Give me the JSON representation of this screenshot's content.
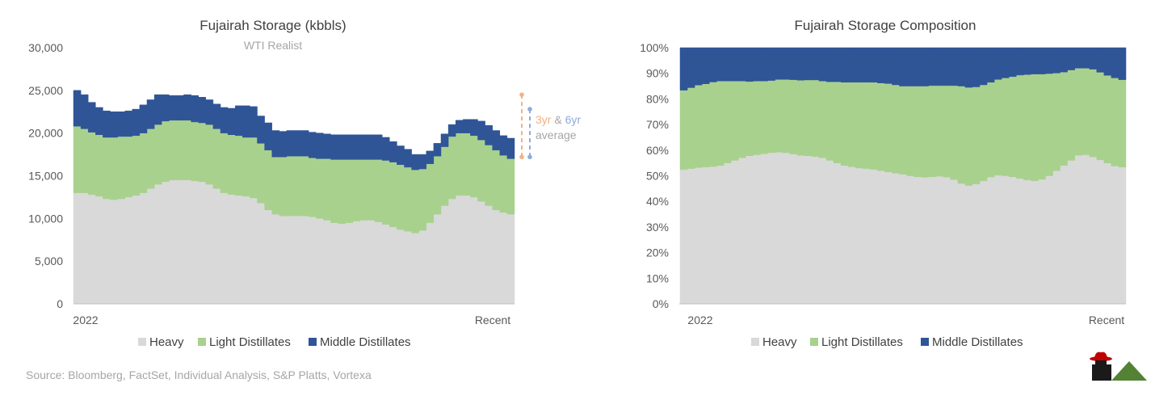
{
  "colors": {
    "heavy": "#d9d9d9",
    "light": "#a9d18e",
    "middle": "#2f5597",
    "axis": "#bfbfbf",
    "avg3": "#f4b183",
    "avg6": "#8faadc",
    "note": "#a6a6a6"
  },
  "source": "Source: Bloomberg, FactSet, Individual Analysis, S&P Platts, Vortexa",
  "logo": {
    "icon": "cowboy-hat-logo-and-mountain-icon"
  },
  "chart_data": [
    {
      "type": "area",
      "stacked": true,
      "title": "Fujairah Storage (kbbls)",
      "subtitle": "WTI Realist",
      "x_start_label": "2022",
      "x_end_label": "Recent",
      "ylim": [
        0,
        30000
      ],
      "yticks": [
        0,
        5000,
        10000,
        15000,
        20000,
        25000,
        30000
      ],
      "ytick_labels": [
        "0",
        "5,000",
        "10,000",
        "15,000",
        "20,000",
        "25,000",
        "30,000"
      ],
      "legend": [
        "Heavy",
        "Light Distillates",
        "Middle Distillates"
      ],
      "annotation": {
        "part1": "3yr",
        "part2": " & ",
        "part3": "6yr",
        "line2": "average"
      },
      "avg_3yr": {
        "high": 24500,
        "low": 17200
      },
      "avg_6yr": {
        "high": 22800,
        "low": 17200
      },
      "series": [
        {
          "name": "Heavy",
          "values": [
            13000,
            13000,
            12800,
            12600,
            12300,
            12200,
            12300,
            12500,
            12700,
            13000,
            13500,
            14000,
            14300,
            14500,
            14500,
            14500,
            14400,
            14300,
            14000,
            13500,
            13000,
            12800,
            12700,
            12600,
            12400,
            11800,
            11000,
            10500,
            10300,
            10300,
            10300,
            10300,
            10200,
            10000,
            9800,
            9500,
            9400,
            9500,
            9700,
            9800,
            9800,
            9600,
            9300,
            9000,
            8700,
            8500,
            8300,
            8600,
            9500,
            10500,
            11500,
            12300,
            12700,
            12700,
            12500,
            12000,
            11500,
            11000,
            10700,
            10500
          ]
        },
        {
          "name": "Light Distillates",
          "values": [
            7800,
            7500,
            7300,
            7200,
            7200,
            7300,
            7300,
            7100,
            7000,
            7000,
            7000,
            7000,
            7100,
            7000,
            7000,
            7000,
            6900,
            6900,
            7000,
            7000,
            7000,
            7000,
            7000,
            6900,
            7100,
            7000,
            7000,
            6700,
            6900,
            7000,
            7000,
            7000,
            6900,
            7000,
            7200,
            7400,
            7500,
            7400,
            7200,
            7100,
            7100,
            7300,
            7500,
            7600,
            7600,
            7500,
            7400,
            7200,
            6900,
            6800,
            6900,
            7300,
            7300,
            7300,
            7200,
            7200,
            7100,
            7000,
            6700,
            6500
          ]
        },
        {
          "name": "Middle Distillates",
          "values": [
            4200,
            4000,
            3500,
            3200,
            3100,
            3000,
            2900,
            3000,
            3100,
            3300,
            3400,
            3500,
            3100,
            2900,
            2900,
            3000,
            3100,
            3000,
            2900,
            2900,
            3000,
            3100,
            3500,
            3700,
            3600,
            3200,
            3200,
            3100,
            3000,
            3000,
            3000,
            3000,
            3000,
            3000,
            2900,
            2900,
            2900,
            2900,
            2900,
            2900,
            2900,
            2900,
            2700,
            2400,
            2200,
            2100,
            1800,
            1700,
            1500,
            1500,
            1500,
            1400,
            1500,
            1600,
            1900,
            2200,
            2300,
            2300,
            2300,
            2400
          ]
        }
      ]
    },
    {
      "type": "area",
      "stacked": true,
      "percent": true,
      "title": "Fujairah Storage Composition",
      "x_start_label": "2022",
      "x_end_label": "Recent",
      "ylim": [
        0,
        100
      ],
      "yticks": [
        0,
        10,
        20,
        30,
        40,
        50,
        60,
        70,
        80,
        90,
        100
      ],
      "ytick_labels": [
        "0%",
        "10%",
        "20%",
        "30%",
        "40%",
        "50%",
        "60%",
        "70%",
        "80%",
        "90%",
        "100%"
      ],
      "legend": [
        "Heavy",
        "Light Distillates",
        "Middle Distillates"
      ],
      "series": [
        {
          "name": "Heavy",
          "values": [
            52.4,
            52.8,
            53.2,
            53.4,
            53.6,
            54.0,
            55.0,
            56.0,
            57.0,
            57.8,
            58.2,
            58.6,
            59.0,
            59.2,
            59.0,
            58.5,
            58.0,
            57.8,
            57.5,
            57.0,
            56.0,
            55.0,
            54.0,
            53.5,
            53.0,
            52.8,
            52.5,
            52.0,
            51.5,
            51.0,
            50.6,
            50.0,
            49.6,
            49.4,
            49.6,
            49.8,
            49.5,
            48.5,
            47.0,
            46.2,
            46.8,
            48.0,
            49.5,
            50.2,
            50.0,
            49.6,
            49.0,
            48.4,
            48.0,
            48.6,
            50.0,
            52.0,
            54.0,
            56.0,
            58.0,
            58.2,
            57.4,
            56.2,
            55.0,
            53.8,
            53.4
          ]
        },
        {
          "name": "Light Distillates",
          "values": [
            31.0,
            31.6,
            32.2,
            32.5,
            33.0,
            33.0,
            32.0,
            31.0,
            30.0,
            29.0,
            28.8,
            28.4,
            28.2,
            28.4,
            28.6,
            29.0,
            29.3,
            29.6,
            29.9,
            30.0,
            30.7,
            31.7,
            32.5,
            33.0,
            33.5,
            33.7,
            34.0,
            34.2,
            34.5,
            34.5,
            34.4,
            35.0,
            35.4,
            35.6,
            35.6,
            35.4,
            35.7,
            36.7,
            38.0,
            38.3,
            37.9,
            37.5,
            37.0,
            37.4,
            38.2,
            39.1,
            40.3,
            41.1,
            41.7,
            41.1,
            39.9,
            38.1,
            36.5,
            35.3,
            34.0,
            33.8,
            34.2,
            34.2,
            34.2,
            34.4,
            34.1
          ]
        },
        {
          "name": "Middle Distillates",
          "values": [
            16.6,
            15.6,
            14.6,
            14.1,
            13.4,
            13.0,
            13.0,
            13.0,
            13.0,
            13.2,
            13.0,
            13.0,
            12.8,
            12.4,
            12.4,
            12.5,
            12.7,
            12.6,
            12.6,
            13.0,
            13.3,
            13.3,
            13.5,
            13.5,
            13.5,
            13.5,
            13.5,
            13.8,
            14.0,
            14.5,
            15.0,
            15.0,
            15.0,
            15.0,
            14.8,
            14.8,
            14.8,
            14.8,
            15.0,
            15.5,
            15.3,
            14.5,
            13.5,
            12.4,
            11.8,
            11.3,
            10.7,
            10.5,
            10.3,
            10.3,
            10.1,
            9.9,
            9.5,
            8.7,
            8.0,
            8.0,
            8.4,
            9.6,
            10.8,
            11.8,
            12.5
          ]
        }
      ]
    }
  ]
}
